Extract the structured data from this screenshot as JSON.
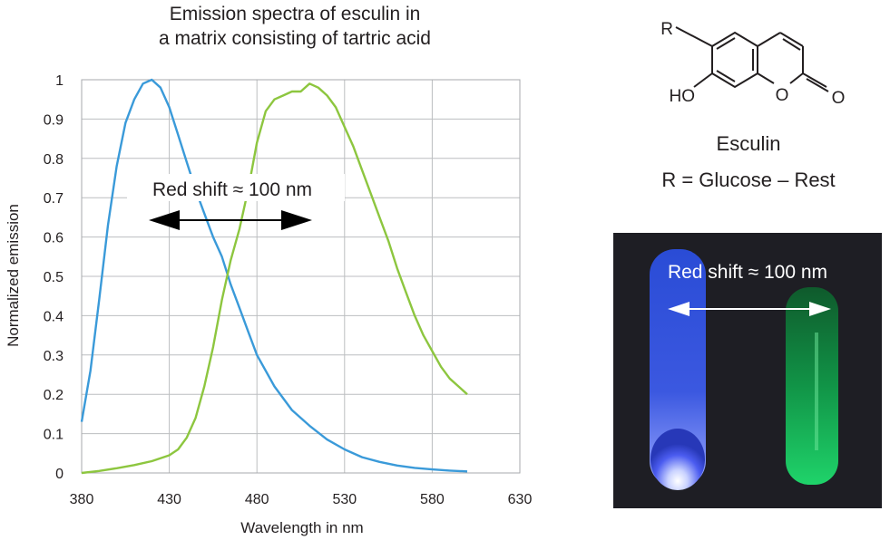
{
  "chart_data": {
    "type": "line",
    "title": [
      "Emission spectra of esculin in",
      "a matrix consisting of tartric acid"
    ],
    "xlabel": "Wavelength in nm",
    "ylabel": "Normalized emission",
    "xlim": [
      380,
      630
    ],
    "ylim": [
      0,
      1
    ],
    "xticks": [
      "380",
      "430",
      "480",
      "530",
      "580",
      "630"
    ],
    "yticks": [
      "0",
      "0.1",
      "0.2",
      "0.3",
      "0.4",
      "0.5",
      "0.6",
      "0.7",
      "0.8",
      "0.9",
      "1"
    ],
    "grid": true,
    "annotation": "Red shift ≈ 100 nm",
    "series": [
      {
        "color": "#3a9ad9",
        "x": [
          380,
          385,
          390,
          395,
          400,
          405,
          410,
          415,
          420,
          425,
          430,
          435,
          440,
          445,
          450,
          455,
          460,
          465,
          470,
          475,
          480,
          490,
          500,
          510,
          520,
          530,
          540,
          550,
          560,
          570,
          580,
          590,
          600
        ],
        "y": [
          0.13,
          0.26,
          0.44,
          0.63,
          0.78,
          0.89,
          0.95,
          0.99,
          1.0,
          0.98,
          0.93,
          0.86,
          0.79,
          0.72,
          0.66,
          0.6,
          0.55,
          0.48,
          0.42,
          0.36,
          0.3,
          0.22,
          0.16,
          0.12,
          0.085,
          0.06,
          0.04,
          0.028,
          0.019,
          0.013,
          0.009,
          0.006,
          0.004
        ]
      },
      {
        "color": "#8dc63f",
        "x": [
          380,
          390,
          400,
          410,
          420,
          430,
          435,
          440,
          445,
          450,
          455,
          460,
          465,
          470,
          475,
          480,
          485,
          490,
          495,
          500,
          505,
          510,
          515,
          520,
          525,
          530,
          535,
          540,
          545,
          550,
          555,
          560,
          565,
          570,
          575,
          580,
          585,
          590,
          595,
          600
        ],
        "y": [
          0.0,
          0.005,
          0.012,
          0.02,
          0.03,
          0.045,
          0.06,
          0.09,
          0.14,
          0.22,
          0.32,
          0.44,
          0.54,
          0.62,
          0.72,
          0.84,
          0.92,
          0.95,
          0.96,
          0.97,
          0.97,
          0.99,
          0.98,
          0.96,
          0.93,
          0.88,
          0.83,
          0.77,
          0.71,
          0.65,
          0.59,
          0.52,
          0.46,
          0.4,
          0.35,
          0.31,
          0.27,
          0.24,
          0.22,
          0.2
        ]
      }
    ]
  },
  "molecule": {
    "atoms": {
      "r": "R",
      "ho": "HO",
      "o_ring": "O",
      "o_carbonyl": "O"
    },
    "name": "Esculin",
    "r_definition": "R = Glucose – Rest"
  },
  "photo": {
    "caption": "Red shift ≈ 100 nm"
  }
}
